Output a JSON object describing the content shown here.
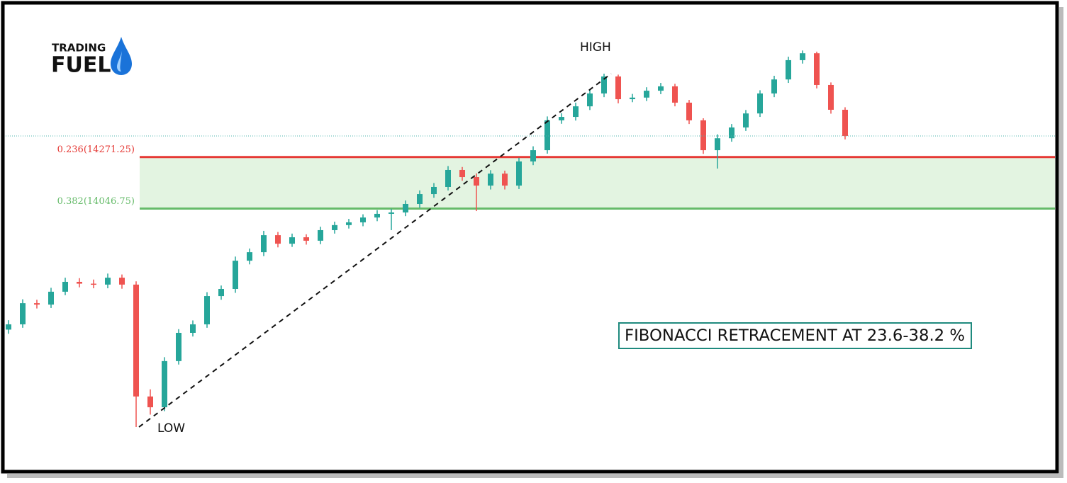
{
  "logo": {
    "line1": "TRADING",
    "line2": "FUEL"
  },
  "chart_data": {
    "type": "candlestick",
    "note": "FIBONACCI RETRACEMENT AT 23.6-38.2 %",
    "categories": [
      null,
      null,
      null,
      null,
      null,
      null,
      null,
      null,
      null,
      null,
      null,
      null,
      null,
      null,
      null,
      null,
      null,
      null,
      null,
      null,
      null,
      null,
      null,
      null,
      null,
      null,
      null,
      null,
      null,
      null,
      null,
      null,
      null,
      null,
      null,
      null,
      null,
      null,
      null,
      null,
      null,
      null,
      null,
      null,
      null,
      null,
      null,
      null,
      null,
      null,
      null,
      null,
      null,
      null,
      null,
      null,
      null,
      null,
      null,
      null
    ],
    "open": [
      13520,
      13543,
      13635,
      13629,
      13685,
      13728,
      13720,
      13716,
      13746,
      13716,
      13229,
      13182,
      13383,
      13506,
      13543,
      13666,
      13697,
      13820,
      13857,
      13931,
      13894,
      13922,
      13907,
      13953,
      13975,
      13987,
      14008,
      14024,
      14030,
      14067,
      14110,
      14141,
      14215,
      14184,
      14147,
      14199,
      14147,
      14252,
      14301,
      14431,
      14446,
      14492,
      14548,
      14622,
      14523,
      14530,
      14560,
      14579,
      14508,
      14431,
      14301,
      14353,
      14400,
      14461,
      14548,
      14609,
      14693,
      14723,
      14585,
      14477
    ],
    "high": [
      13561,
      13652,
      13650,
      13702,
      13746,
      13744,
      13738,
      13764,
      13760,
      13730,
      13260,
      13400,
      13522,
      13560,
      13683,
      13712,
      13838,
      13873,
      13950,
      13945,
      13938,
      13935,
      13968,
      13990,
      14002,
      14022,
      14040,
      14046,
      14082,
      14126,
      14158,
      14232,
      14228,
      14200,
      14214,
      14212,
      14268,
      14318,
      14448,
      14462,
      14508,
      14565,
      14634,
      14630,
      14546,
      14575,
      14594,
      14590,
      14520,
      14440,
      14370,
      14415,
      14476,
      14562,
      14625,
      14708,
      14735,
      14730,
      14596,
      14488
    ],
    "low": [
      13502,
      13528,
      13612,
      13614,
      13670,
      13704,
      13700,
      13700,
      13698,
      13096,
      13150,
      13165,
      13368,
      13490,
      13528,
      13650,
      13680,
      13804,
      13840,
      13878,
      13880,
      13890,
      13892,
      13938,
      13960,
      13970,
      13992,
      13953,
      14014,
      14050,
      14094,
      14126,
      14168,
      14036,
      14130,
      14130,
      14132,
      14236,
      14286,
      14416,
      14430,
      14476,
      14532,
      14505,
      14510,
      14515,
      14545,
      14492,
      14415,
      14285,
      14221,
      14338,
      14385,
      14446,
      14532,
      14594,
      14678,
      14570,
      14460,
      14348
    ],
    "close": [
      13543,
      13635,
      13629,
      13685,
      13728,
      13720,
      13716,
      13746,
      13716,
      13229,
      13182,
      13383,
      13506,
      13543,
      13666,
      13697,
      13820,
      13857,
      13931,
      13894,
      13922,
      13907,
      13953,
      13975,
      13987,
      14008,
      14024,
      14030,
      14067,
      14110,
      14141,
      14215,
      14184,
      14147,
      14199,
      14147,
      14252,
      14301,
      14431,
      14446,
      14492,
      14548,
      14622,
      14523,
      14530,
      14560,
      14579,
      14508,
      14431,
      14301,
      14353,
      14400,
      14461,
      14548,
      14609,
      14693,
      14723,
      14585,
      14477,
      14363
    ],
    "up_color": "#26a69a",
    "down_color": "#ef5350",
    "ylim": [
      12914,
      14924
    ],
    "fib_levels": [
      {
        "label": "0.236(14271.25)",
        "value": 14271.25,
        "color": "#e53935"
      },
      {
        "label": "0.382(14046.75)",
        "value": 14046.75,
        "color": "#66bb6a"
      }
    ],
    "zone_color": "#e3f4e1",
    "low_point": {
      "label": "LOW",
      "value": 13096
    },
    "high_point": {
      "label": "HIGH",
      "value": 14634
    }
  }
}
